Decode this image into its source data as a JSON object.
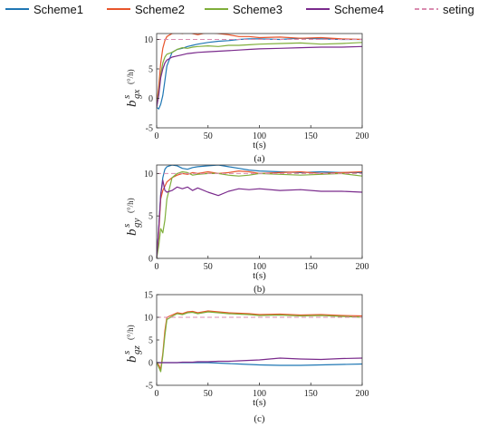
{
  "legend": [
    {
      "name": "Scheme1",
      "color": "#1f77b4",
      "dash": false
    },
    {
      "name": "Scheme2",
      "color": "#e8552b",
      "dash": false
    },
    {
      "name": "Scheme3",
      "color": "#7fae3a",
      "dash": false
    },
    {
      "name": "Scheme4",
      "color": "#7a2a8c",
      "dash": false
    },
    {
      "name": "seting",
      "color": "#d98cb0",
      "dash": true
    }
  ],
  "chart_data": [
    {
      "type": "line",
      "caption": "(a)",
      "xlabel": "t(s)",
      "ylabel": {
        "main": "b",
        "sup": "s",
        "sub": "gx",
        "unit": "(°/h)"
      },
      "xlim": [
        0,
        200
      ],
      "ylim": [
        -5,
        11
      ],
      "xticks": [
        0,
        50,
        100,
        150,
        200
      ],
      "yticks": [
        -5,
        0,
        5,
        10
      ],
      "grid": false,
      "x": [
        0,
        2,
        4,
        6,
        8,
        10,
        15,
        20,
        25,
        30,
        35,
        40,
        50,
        60,
        70,
        80,
        90,
        100,
        120,
        140,
        160,
        180,
        200
      ],
      "series": [
        {
          "name": "Scheme1",
          "values": [
            -1.5,
            -1.8,
            -1.0,
            0.5,
            3.0,
            5.5,
            7.8,
            8.3,
            8.5,
            8.8,
            9.0,
            9.2,
            9.5,
            9.7,
            9.8,
            10.0,
            10.1,
            10.1,
            10.0,
            10.2,
            10.1,
            10.0,
            10.0
          ]
        },
        {
          "name": "Scheme2",
          "values": [
            -1.0,
            2.0,
            6.0,
            8.5,
            9.8,
            10.5,
            11.0,
            11.2,
            11.0,
            11.3,
            11.0,
            10.8,
            11.2,
            11.0,
            10.8,
            10.5,
            10.5,
            10.3,
            10.4,
            10.2,
            10.3,
            10.1,
            10.0
          ]
        },
        {
          "name": "Scheme3",
          "values": [
            -1.5,
            1.0,
            4.0,
            6.0,
            7.0,
            7.5,
            7.8,
            8.3,
            8.6,
            8.5,
            8.7,
            8.8,
            8.9,
            8.8,
            9.0,
            9.0,
            9.1,
            9.2,
            9.3,
            9.4,
            9.2,
            9.3,
            9.5
          ]
        },
        {
          "name": "Scheme4",
          "values": [
            -1.5,
            0.5,
            3.5,
            5.0,
            6.0,
            6.5,
            7.0,
            7.2,
            7.4,
            7.6,
            7.7,
            7.8,
            7.9,
            8.0,
            8.1,
            8.2,
            8.3,
            8.4,
            8.5,
            8.6,
            8.7,
            8.7,
            8.8
          ]
        },
        {
          "name": "seting",
          "values": [
            10,
            10,
            10,
            10,
            10,
            10,
            10,
            10,
            10,
            10,
            10,
            10,
            10,
            10,
            10,
            10,
            10,
            10,
            10,
            10,
            10,
            10,
            10
          ]
        }
      ]
    },
    {
      "type": "line",
      "caption": "(b)",
      "xlabel": "t(s)",
      "ylabel": {
        "main": "b",
        "sup": "s",
        "sub": "gy",
        "unit": "(°/h)"
      },
      "xlim": [
        0,
        200
      ],
      "ylim": [
        0,
        11
      ],
      "xticks": [
        0,
        50,
        100,
        150,
        200
      ],
      "yticks": [
        0,
        5,
        10
      ],
      "grid": false,
      "x": [
        0,
        2,
        4,
        6,
        8,
        10,
        15,
        20,
        25,
        30,
        35,
        40,
        50,
        60,
        70,
        80,
        90,
        100,
        120,
        140,
        160,
        180,
        200
      ],
      "series": [
        {
          "name": "Scheme1",
          "values": [
            0.0,
            3.5,
            7.5,
            9.5,
            10.5,
            10.8,
            11.0,
            10.9,
            10.6,
            10.5,
            10.7,
            10.8,
            10.9,
            11.0,
            10.8,
            10.6,
            10.4,
            10.3,
            10.2,
            10.1,
            10.2,
            10.1,
            10.1
          ]
        },
        {
          "name": "Scheme2",
          "values": [
            0.0,
            3.0,
            7.0,
            8.0,
            8.5,
            9.0,
            9.5,
            9.8,
            10.0,
            9.9,
            10.1,
            10.0,
            10.2,
            10.0,
            10.1,
            10.3,
            10.2,
            10.0,
            10.1,
            10.2,
            10.0,
            10.1,
            10.2
          ]
        },
        {
          "name": "Scheme3",
          "values": [
            0.0,
            1.5,
            3.5,
            3.0,
            4.5,
            7.0,
            9.5,
            10.0,
            10.2,
            10.1,
            9.8,
            9.9,
            10.0,
            10.0,
            9.8,
            9.7,
            9.8,
            10.0,
            9.9,
            9.8,
            9.9,
            10.0,
            9.7
          ]
        },
        {
          "name": "Scheme4",
          "values": [
            0.0,
            3.5,
            7.5,
            9.2,
            8.0,
            7.8,
            8.0,
            8.4,
            8.2,
            8.4,
            8.0,
            8.3,
            7.8,
            7.4,
            7.9,
            8.2,
            8.1,
            8.2,
            8.0,
            8.1,
            7.9,
            7.9,
            7.8
          ]
        },
        {
          "name": "seting",
          "values": [
            10,
            10,
            10,
            10,
            10,
            10,
            10,
            10,
            10,
            10,
            10,
            10,
            10,
            10,
            10,
            10,
            10,
            10,
            10,
            10,
            10,
            10,
            10
          ]
        }
      ]
    },
    {
      "type": "line",
      "caption": "(c)",
      "xlabel": "t(s)",
      "ylabel": {
        "main": "b",
        "sup": "s",
        "sub": "gz",
        "unit": "(°/h)"
      },
      "xlim": [
        0,
        200
      ],
      "ylim": [
        -5,
        15
      ],
      "xticks": [
        0,
        50,
        100,
        150,
        200
      ],
      "yticks": [
        -5,
        0,
        5,
        10,
        15
      ],
      "grid": false,
      "x": [
        0,
        2,
        4,
        6,
        8,
        10,
        15,
        20,
        25,
        30,
        35,
        40,
        50,
        60,
        70,
        80,
        90,
        100,
        120,
        140,
        160,
        180,
        200
      ],
      "series": [
        {
          "name": "Scheme1",
          "values": [
            0.0,
            0.0,
            0.0,
            0.0,
            0.0,
            0.0,
            0.0,
            0.0,
            0.0,
            0.0,
            0.0,
            0.0,
            0.0,
            -0.1,
            -0.2,
            -0.3,
            -0.4,
            -0.5,
            -0.6,
            -0.6,
            -0.5,
            -0.4,
            -0.3
          ]
        },
        {
          "name": "Scheme2",
          "values": [
            0.0,
            -0.5,
            -1.5,
            2.0,
            7.0,
            10.0,
            10.5,
            11.0,
            10.8,
            11.2,
            11.3,
            11.0,
            11.4,
            11.2,
            11.0,
            10.9,
            10.8,
            10.6,
            10.7,
            10.5,
            10.6,
            10.4,
            10.3
          ]
        },
        {
          "name": "Scheme3",
          "values": [
            0.0,
            -1.0,
            -2.0,
            1.5,
            6.0,
            9.5,
            10.2,
            10.8,
            10.6,
            11.0,
            11.1,
            10.8,
            11.2,
            11.0,
            10.8,
            10.7,
            10.6,
            10.4,
            10.5,
            10.3,
            10.4,
            10.2,
            10.0
          ]
        },
        {
          "name": "Scheme4",
          "values": [
            0.0,
            0.0,
            0.0,
            0.0,
            0.0,
            0.0,
            0.0,
            0.0,
            0.1,
            0.1,
            0.1,
            0.2,
            0.2,
            0.3,
            0.3,
            0.4,
            0.5,
            0.6,
            1.0,
            0.8,
            0.7,
            0.9,
            1.0
          ]
        },
        {
          "name": "seting",
          "values": [
            10,
            10,
            10,
            10,
            10,
            10,
            10,
            10,
            10,
            10,
            10,
            10,
            10,
            10,
            10,
            10,
            10,
            10,
            10,
            10,
            10,
            10,
            10
          ]
        }
      ]
    }
  ]
}
